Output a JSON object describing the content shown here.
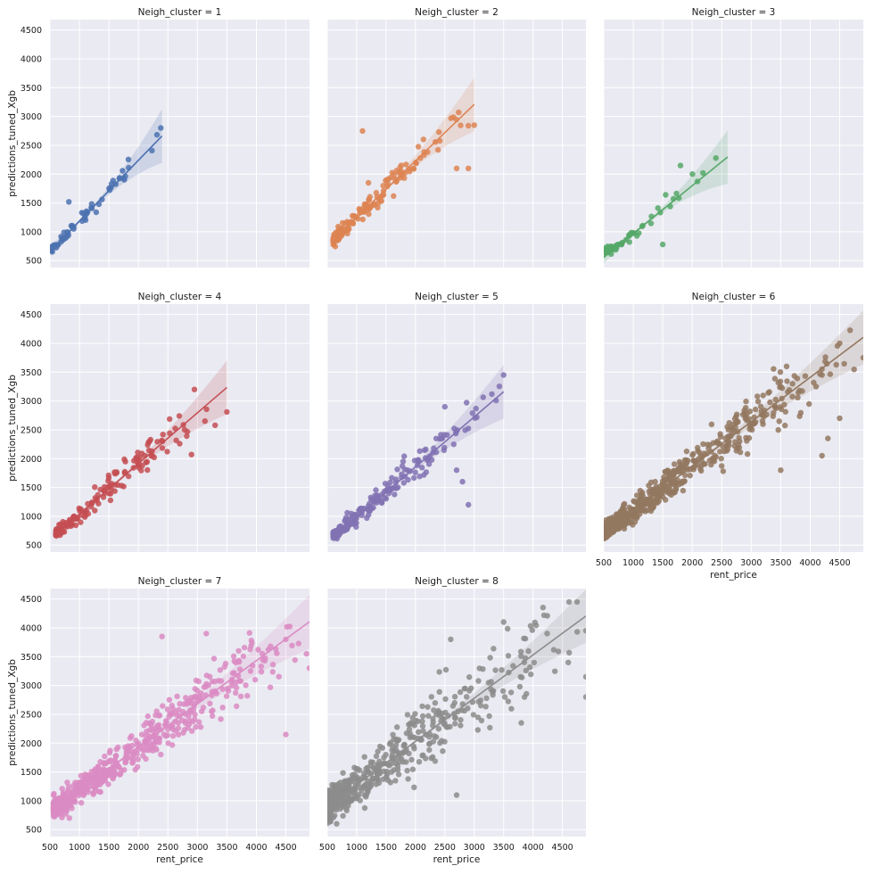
{
  "figure": {
    "xlabel": "rent_price",
    "ylabel": "predictions_tuned_Xgb"
  },
  "chart_data": {
    "type": "scatter",
    "facet_var": "Neigh_cluster",
    "xlim": [
      500,
      4900
    ],
    "ylim": [
      380,
      4680
    ],
    "x_ticks": [
      500,
      1000,
      1500,
      2000,
      2500,
      3000,
      3500,
      4000,
      4500
    ],
    "y_ticks": [
      500,
      1000,
      1500,
      2000,
      2500,
      3000,
      3500,
      4000,
      4500
    ],
    "grid": true,
    "regression_line": true,
    "facets": [
      {
        "title": "Neigh_cluster = 1",
        "color": "#4c72b0",
        "n": 70,
        "x_range": [
          520,
          2400
        ],
        "fit": {
          "slope": 1.055,
          "intercept": 130
        },
        "noise": 90,
        "highlights": [
          [
            2380,
            2800
          ],
          [
            2230,
            2410
          ],
          [
            820,
            1520
          ],
          [
            1200,
            1420
          ]
        ]
      },
      {
        "title": "Neigh_cluster = 2",
        "color": "#dd8452",
        "n": 150,
        "x_range": [
          600,
          3000
        ],
        "fit": {
          "slope": 0.98,
          "intercept": 270
        },
        "noise": 140,
        "highlights": [
          [
            2900,
            2840
          ],
          [
            3000,
            2850
          ],
          [
            1100,
            2750
          ],
          [
            2900,
            2100
          ],
          [
            2700,
            2100
          ],
          [
            2400,
            2730
          ],
          [
            1200,
            1850
          ]
        ]
      },
      {
        "title": "Neigh_cluster = 3",
        "color": "#55a868",
        "n": 55,
        "x_range": [
          500,
          2600
        ],
        "fit": {
          "slope": 0.83,
          "intercept": 140
        },
        "noise": 90,
        "highlights": [
          [
            2400,
            2280
          ],
          [
            1800,
            2150
          ],
          [
            1500,
            780
          ],
          [
            1550,
            1640
          ]
        ]
      },
      {
        "title": "Neigh_cluster = 4",
        "color": "#c44e52",
        "n": 160,
        "x_range": [
          600,
          3500
        ],
        "fit": {
          "slope": 0.88,
          "intercept": 155
        },
        "noise": 150,
        "highlights": [
          [
            3500,
            2810
          ],
          [
            3300,
            2580
          ],
          [
            2950,
            3200
          ],
          [
            2900,
            2070
          ],
          [
            2700,
            2260
          ]
        ]
      },
      {
        "title": "Neigh_cluster = 5",
        "color": "#8172b3",
        "n": 220,
        "x_range": [
          600,
          3500
        ],
        "fit": {
          "slope": 0.87,
          "intercept": 115
        },
        "noise": 160,
        "highlights": [
          [
            3500,
            3450
          ],
          [
            3300,
            3120
          ],
          [
            2800,
            1600
          ],
          [
            2700,
            1800
          ],
          [
            2500,
            2900
          ],
          [
            2900,
            1200
          ]
        ]
      },
      {
        "title": "Neigh_cluster = 6",
        "color": "#937860",
        "n": 650,
        "x_range": [
          500,
          4900
        ],
        "fit": {
          "slope": 0.77,
          "intercept": 330
        },
        "noise": 220,
        "highlights": [
          [
            4900,
            3750
          ],
          [
            4500,
            4000
          ],
          [
            4200,
            3450
          ],
          [
            4100,
            3250
          ],
          [
            3600,
            3600
          ],
          [
            4500,
            2700
          ],
          [
            4200,
            2050
          ],
          [
            4300,
            2350
          ],
          [
            3500,
            1800
          ]
        ]
      },
      {
        "title": "Neigh_cluster = 7",
        "color": "#da8bc3",
        "n": 650,
        "x_range": [
          560,
          4900
        ],
        "fit": {
          "slope": 0.75,
          "intercept": 430
        },
        "noise": 240,
        "highlights": [
          [
            4900,
            3300
          ],
          [
            4850,
            3550
          ],
          [
            4500,
            3800
          ],
          [
            4500,
            2150
          ],
          [
            3150,
            3900
          ],
          [
            2400,
            3850
          ],
          [
            3700,
            3600
          ],
          [
            3900,
            3250
          ]
        ]
      },
      {
        "title": "Neigh_cluster = 8",
        "color": "#8c8c8c",
        "n": 520,
        "x_range": [
          500,
          4900
        ],
        "fit": {
          "slope": 0.75,
          "intercept": 530
        },
        "noise": 380,
        "highlights": [
          [
            4750,
            4450
          ],
          [
            4900,
            3950
          ],
          [
            4900,
            3150
          ],
          [
            4900,
            2800
          ],
          [
            4600,
            3400
          ],
          [
            3500,
            4100
          ],
          [
            3800,
            2350
          ],
          [
            2700,
            1100
          ],
          [
            2600,
            3800
          ],
          [
            500,
            720
          ]
        ]
      }
    ]
  }
}
